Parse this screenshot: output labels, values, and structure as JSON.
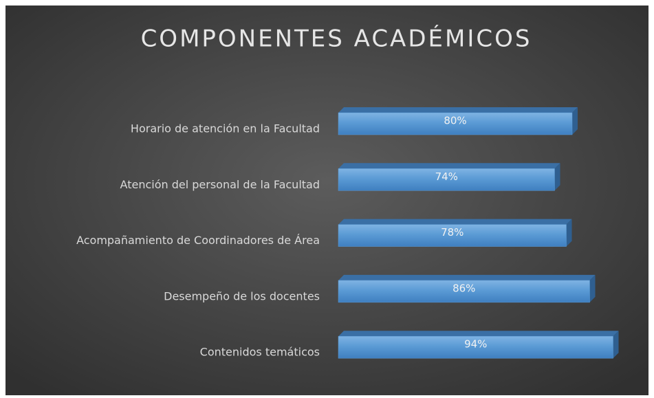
{
  "chart_data": {
    "type": "bar",
    "orientation": "horizontal",
    "title": "COMPONENTES ACADÉMICOS",
    "categories": [
      "Horario de atención en la Facultad",
      "Atención del personal de la Facultad",
      "Acompañamiento de Coordinadores de Área",
      "Desempeño de los docentes",
      "Contenidos temáticos"
    ],
    "values": [
      80,
      74,
      78,
      86,
      94
    ],
    "value_labels": [
      "80%",
      "74%",
      "78%",
      "86%",
      "94%"
    ],
    "color": "#5b9bd5"
  }
}
